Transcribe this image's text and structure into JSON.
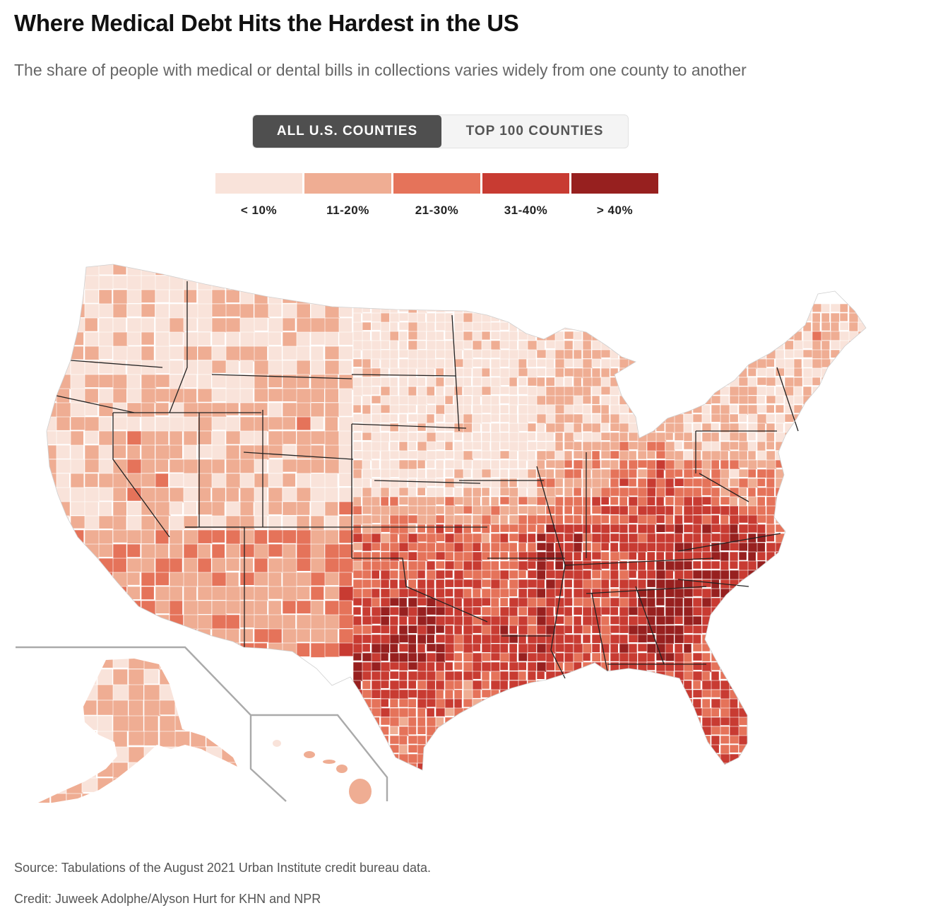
{
  "title": "Where Medical Debt Hits the Hardest in the US",
  "subtitle": "The share of people with medical or dental bills in collections varies widely from one county to another",
  "toggle": {
    "options": [
      "ALL U.S. COUNTIES",
      "TOP 100 COUNTIES"
    ],
    "selected": "ALL U.S. COUNTIES"
  },
  "legend": {
    "bins": [
      {
        "label": "< 10%",
        "color": "#f9e3da"
      },
      {
        "label": "11-20%",
        "color": "#efad93"
      },
      {
        "label": "21-30%",
        "color": "#e5735a"
      },
      {
        "label": "31-40%",
        "color": "#c83b32"
      },
      {
        "label": "> 40%",
        "color": "#97201f"
      }
    ]
  },
  "map": {
    "type": "choropleth",
    "region": "US counties, including Alaska and Hawaii insets",
    "borders": {
      "county": "#ffffff",
      "state": "#222222",
      "inset_frame": "#aaaaaa"
    }
  },
  "footer": {
    "source": "Source: Tabulations of the August 2021 Urban Institute credit bureau data.",
    "credit": "Credit: Juweek Adolphe/Alyson Hurt for KHN and NPR"
  }
}
